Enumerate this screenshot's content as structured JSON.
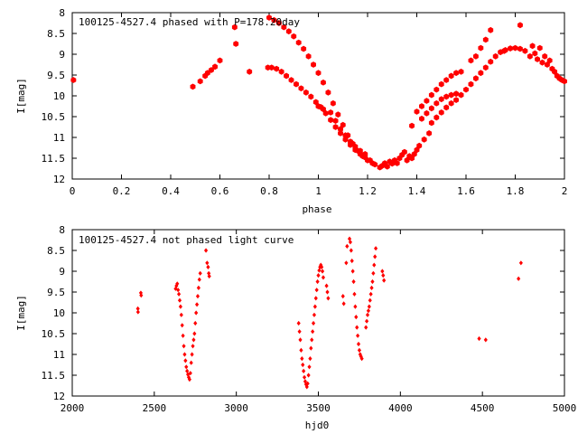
{
  "chart_data": [
    {
      "type": "scatter",
      "title": "100125-4527.4 phased with P=178.20day",
      "xlabel": "phase",
      "ylabel": "I[mag]",
      "xlim": [
        0,
        2
      ],
      "ylim": [
        12,
        8
      ],
      "y_inverted": true,
      "grid": false,
      "marker_color": "#ff0000",
      "marker": "filled-hexagon",
      "x_ticks": [
        "0",
        "0.2",
        "0.4",
        "0.6",
        "0.8",
        "1",
        "1.2",
        "1.4",
        "1.6",
        "1.8",
        "2"
      ],
      "y_ticks": [
        "8",
        "8.5",
        "9",
        "9.5",
        "10",
        "10.5",
        "11",
        "11.5",
        "12"
      ],
      "series": [
        {
          "points": [
            [
              0.005,
              9.62
            ],
            [
              0.49,
              9.78
            ],
            [
              0.52,
              9.65
            ],
            [
              0.54,
              9.52
            ],
            [
              0.55,
              9.45
            ],
            [
              0.565,
              9.38
            ],
            [
              0.58,
              9.3
            ],
            [
              0.6,
              9.15
            ],
            [
              0.66,
              8.35
            ],
            [
              0.665,
              8.75
            ],
            [
              0.72,
              9.42
            ],
            [
              0.795,
              9.32
            ],
            [
              0.81,
              9.32
            ],
            [
              0.83,
              9.35
            ],
            [
              0.85,
              9.42
            ],
            [
              0.87,
              9.52
            ],
            [
              0.89,
              9.62
            ],
            [
              0.91,
              9.72
            ],
            [
              0.93,
              9.82
            ],
            [
              0.95,
              9.92
            ],
            [
              0.97,
              10.02
            ],
            [
              0.99,
              10.15
            ],
            [
              1.01,
              10.27
            ],
            [
              1.03,
              10.42
            ],
            [
              1.05,
              10.58
            ],
            [
              1.07,
              10.75
            ],
            [
              1.09,
              10.9
            ],
            [
              1.11,
              11.05
            ],
            [
              1.13,
              11.18
            ],
            [
              1.15,
              11.3
            ],
            [
              1.17,
              11.4
            ],
            [
              1.19,
              11.48
            ],
            [
              1.21,
              11.55
            ],
            [
              0.8,
              8.12
            ],
            [
              0.82,
              8.18
            ],
            [
              0.84,
              8.25
            ],
            [
              0.86,
              8.35
            ],
            [
              0.88,
              8.45
            ],
            [
              0.9,
              8.57
            ],
            [
              0.92,
              8.72
            ],
            [
              0.94,
              8.87
            ],
            [
              0.96,
              9.05
            ],
            [
              0.98,
              9.25
            ],
            [
              1.0,
              9.45
            ],
            [
              1.02,
              9.68
            ],
            [
              1.04,
              9.92
            ],
            [
              1.06,
              10.18
            ],
            [
              1.08,
              10.45
            ],
            [
              1.1,
              10.7
            ],
            [
              1.12,
              10.95
            ],
            [
              1.14,
              11.15
            ],
            [
              1.16,
              11.32
            ],
            [
              1.18,
              11.45
            ],
            [
              1.2,
              11.55
            ],
            [
              1.22,
              11.62
            ],
            [
              1.0,
              10.25
            ],
            [
              1.02,
              10.32
            ],
            [
              1.05,
              10.4
            ],
            [
              1.07,
              10.6
            ],
            [
              1.09,
              10.8
            ],
            [
              1.11,
              10.95
            ],
            [
              1.13,
              11.1
            ],
            [
              1.15,
              11.22
            ],
            [
              1.17,
              11.32
            ],
            [
              1.19,
              11.4
            ],
            [
              1.23,
              11.65
            ],
            [
              1.25,
              11.72
            ],
            [
              1.26,
              11.68
            ],
            [
              1.27,
              11.62
            ],
            [
              1.28,
              11.7
            ],
            [
              1.29,
              11.58
            ],
            [
              1.3,
              11.63
            ],
            [
              1.31,
              11.55
            ],
            [
              1.32,
              11.62
            ],
            [
              1.33,
              11.5
            ],
            [
              1.34,
              11.42
            ],
            [
              1.35,
              11.35
            ],
            [
              1.36,
              11.55
            ],
            [
              1.37,
              11.45
            ],
            [
              1.38,
              11.5
            ],
            [
              1.39,
              11.4
            ],
            [
              1.4,
              11.3
            ],
            [
              1.41,
              11.2
            ],
            [
              1.43,
              11.05
            ],
            [
              1.45,
              10.9
            ],
            [
              1.38,
              10.72
            ],
            [
              1.4,
              10.38
            ],
            [
              1.42,
              10.25
            ],
            [
              1.44,
              10.12
            ],
            [
              1.46,
              9.98
            ],
            [
              1.48,
              9.85
            ],
            [
              1.5,
              9.72
            ],
            [
              1.52,
              9.62
            ],
            [
              1.54,
              9.52
            ],
            [
              1.56,
              9.45
            ],
            [
              1.58,
              9.42
            ],
            [
              1.42,
              10.55
            ],
            [
              1.44,
              10.42
            ],
            [
              1.46,
              10.3
            ],
            [
              1.48,
              10.18
            ],
            [
              1.5,
              10.08
            ],
            [
              1.52,
              10.02
            ],
            [
              1.54,
              9.98
            ],
            [
              1.56,
              9.95
            ],
            [
              1.46,
              10.65
            ],
            [
              1.48,
              10.52
            ],
            [
              1.5,
              10.4
            ],
            [
              1.52,
              10.28
            ],
            [
              1.54,
              10.18
            ],
            [
              1.56,
              10.1
            ],
            [
              1.58,
              9.98
            ],
            [
              1.6,
              9.85
            ],
            [
              1.62,
              9.72
            ],
            [
              1.64,
              9.58
            ],
            [
              1.66,
              9.45
            ],
            [
              1.68,
              9.32
            ],
            [
              1.7,
              9.18
            ],
            [
              1.72,
              9.05
            ],
            [
              1.74,
              8.95
            ],
            [
              1.76,
              8.9
            ],
            [
              1.78,
              8.86
            ],
            [
              1.8,
              8.85
            ],
            [
              1.82,
              8.87
            ],
            [
              1.84,
              8.92
            ],
            [
              1.62,
              9.15
            ],
            [
              1.64,
              9.05
            ],
            [
              1.66,
              8.85
            ],
            [
              1.68,
              8.65
            ],
            [
              1.7,
              8.42
            ],
            [
              1.755,
              8.92
            ],
            [
              1.82,
              8.3
            ],
            [
              1.86,
              9.05
            ],
            [
              1.87,
              8.8
            ],
            [
              1.88,
              8.98
            ],
            [
              1.89,
              9.12
            ],
            [
              1.9,
              8.85
            ],
            [
              1.91,
              9.2
            ],
            [
              1.92,
              9.05
            ],
            [
              1.93,
              9.25
            ],
            [
              1.94,
              9.15
            ],
            [
              1.95,
              9.35
            ],
            [
              1.96,
              9.42
            ],
            [
              1.97,
              9.52
            ],
            [
              1.98,
              9.58
            ],
            [
              1.99,
              9.62
            ],
            [
              2.0,
              9.65
            ]
          ]
        }
      ]
    },
    {
      "type": "scatter",
      "title": "100125-4527.4 not phased light curve",
      "xlabel": "hjd0",
      "ylabel": "I[mag]",
      "xlim": [
        2000,
        5000
      ],
      "ylim": [
        12,
        8
      ],
      "y_inverted": true,
      "grid": false,
      "marker_color": "#ff0000",
      "marker": "filled-diamond",
      "x_ticks": [
        "2000",
        "2500",
        "3000",
        "3500",
        "4000",
        "4500",
        "5000"
      ],
      "y_ticks": [
        "8",
        "8.5",
        "9",
        "9.5",
        "10",
        "10.5",
        "11",
        "11.5",
        "12"
      ],
      "series": [
        {
          "points": [
            [
              2400,
              9.9
            ],
            [
              2401,
              9.98
            ],
            [
              2418,
              9.52
            ],
            [
              2420,
              9.58
            ],
            [
              2630,
              9.42
            ],
            [
              2635,
              9.35
            ],
            [
              2640,
              9.3
            ],
            [
              2645,
              9.45
            ],
            [
              2650,
              9.55
            ],
            [
              2655,
              9.7
            ],
            [
              2660,
              9.85
            ],
            [
              2665,
              10.05
            ],
            [
              2670,
              10.3
            ],
            [
              2675,
              10.55
            ],
            [
              2680,
              10.8
            ],
            [
              2685,
              11.0
            ],
            [
              2690,
              11.15
            ],
            [
              2695,
              11.3
            ],
            [
              2700,
              11.4
            ],
            [
              2705,
              11.48
            ],
            [
              2710,
              11.55
            ],
            [
              2715,
              11.6
            ],
            [
              2720,
              11.45
            ],
            [
              2725,
              11.2
            ],
            [
              2730,
              11.0
            ],
            [
              2735,
              10.8
            ],
            [
              2740,
              10.65
            ],
            [
              2745,
              10.5
            ],
            [
              2750,
              10.25
            ],
            [
              2755,
              10.0
            ],
            [
              2760,
              9.8
            ],
            [
              2765,
              9.6
            ],
            [
              2770,
              9.4
            ],
            [
              2775,
              9.2
            ],
            [
              2780,
              9.05
            ],
            [
              2815,
              8.5
            ],
            [
              2822,
              8.8
            ],
            [
              2828,
              8.9
            ],
            [
              2832,
              9.05
            ],
            [
              2835,
              9.12
            ],
            [
              3380,
              10.25
            ],
            [
              3385,
              10.45
            ],
            [
              3390,
              10.65
            ],
            [
              3395,
              10.9
            ],
            [
              3400,
              11.1
            ],
            [
              3405,
              11.25
            ],
            [
              3410,
              11.4
            ],
            [
              3415,
              11.55
            ],
            [
              3420,
              11.65
            ],
            [
              3425,
              11.72
            ],
            [
              3430,
              11.78
            ],
            [
              3435,
              11.7
            ],
            [
              3440,
              11.5
            ],
            [
              3445,
              11.3
            ],
            [
              3450,
              11.1
            ],
            [
              3455,
              10.85
            ],
            [
              3460,
              10.65
            ],
            [
              3465,
              10.45
            ],
            [
              3470,
              10.25
            ],
            [
              3475,
              10.05
            ],
            [
              3480,
              9.85
            ],
            [
              3485,
              9.65
            ],
            [
              3490,
              9.45
            ],
            [
              3495,
              9.25
            ],
            [
              3500,
              9.1
            ],
            [
              3505,
              8.98
            ],
            [
              3510,
              8.9
            ],
            [
              3515,
              8.85
            ],
            [
              3520,
              8.9
            ],
            [
              3525,
              9.0
            ],
            [
              3530,
              9.15
            ],
            [
              3550,
              9.35
            ],
            [
              3555,
              9.5
            ],
            [
              3560,
              9.65
            ],
            [
              3650,
              9.6
            ],
            [
              3655,
              9.78
            ],
            [
              3670,
              8.8
            ],
            [
              3675,
              8.4
            ],
            [
              3690,
              8.22
            ],
            [
              3695,
              8.3
            ],
            [
              3700,
              8.5
            ],
            [
              3705,
              8.75
            ],
            [
              3710,
              9.0
            ],
            [
              3715,
              9.25
            ],
            [
              3720,
              9.55
            ],
            [
              3725,
              9.85
            ],
            [
              3730,
              10.1
            ],
            [
              3735,
              10.35
            ],
            [
              3740,
              10.55
            ],
            [
              3745,
              10.75
            ],
            [
              3750,
              10.9
            ],
            [
              3755,
              11.0
            ],
            [
              3760,
              11.05
            ],
            [
              3765,
              11.1
            ],
            [
              3790,
              10.35
            ],
            [
              3795,
              10.2
            ],
            [
              3800,
              10.05
            ],
            [
              3805,
              9.95
            ],
            [
              3810,
              9.85
            ],
            [
              3815,
              9.7
            ],
            [
              3820,
              9.55
            ],
            [
              3825,
              9.4
            ],
            [
              3830,
              9.25
            ],
            [
              3835,
              9.05
            ],
            [
              3840,
              8.85
            ],
            [
              3845,
              8.65
            ],
            [
              3850,
              8.45
            ],
            [
              3890,
              9.0
            ],
            [
              3895,
              9.1
            ],
            [
              3900,
              9.22
            ],
            [
              4480,
              10.62
            ],
            [
              4520,
              10.65
            ],
            [
              4720,
              9.18
            ],
            [
              4735,
              8.8
            ]
          ]
        }
      ]
    }
  ]
}
